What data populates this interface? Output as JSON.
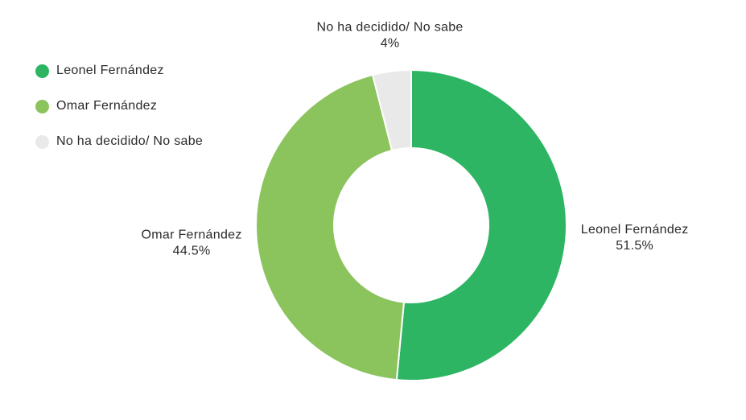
{
  "chart_data": {
    "type": "pie",
    "donut": true,
    "categories": [
      "Leonel Fernández",
      "Omar Fernández",
      "No ha decidido/ No sabe"
    ],
    "values": [
      51.5,
      44.5,
      4
    ],
    "value_labels": [
      "51.5%",
      "44.5%",
      "4%"
    ],
    "colors": [
      "#2db563",
      "#8bc35c",
      "#e9e9e9"
    ],
    "legend_position": "top-left",
    "title": ""
  },
  "legend": {
    "items": [
      {
        "label": "Leonel Fernández",
        "color": "#2db563"
      },
      {
        "label": "Omar Fernández",
        "color": "#8bc35c"
      },
      {
        "label": "No ha decidido/ No sabe",
        "color": "#e9e9e9"
      }
    ]
  }
}
